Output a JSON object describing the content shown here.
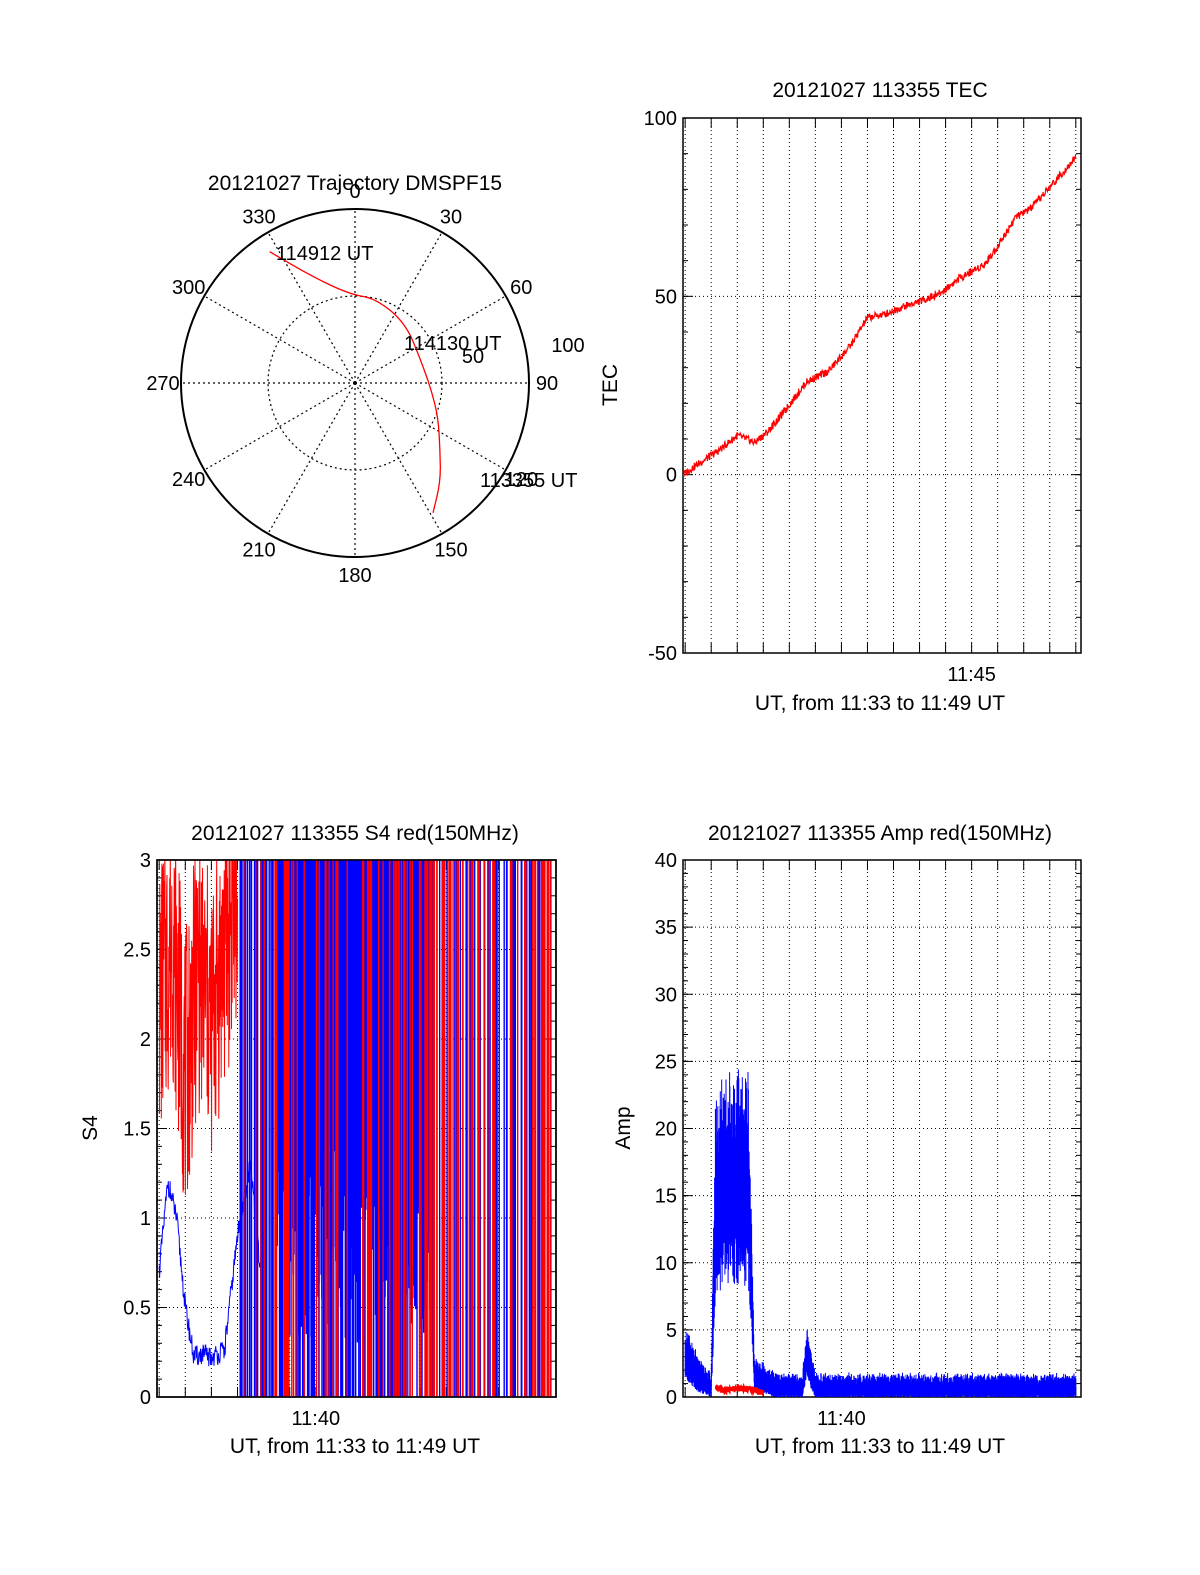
{
  "chart_data": [
    {
      "type": "polar",
      "title": "20121027 Trajectory DMSPF15",
      "angle_ticks": [
        "0",
        "30",
        "60",
        "90",
        "120",
        "150",
        "180",
        "210",
        "240",
        "270",
        "300",
        "330"
      ],
      "radial_ticks": [
        "50",
        "100"
      ],
      "rlim": [
        0,
        100
      ],
      "grid": true,
      "series": [
        {
          "color": "#ff0000",
          "points": [
            {
              "azimuth": 149,
              "r": 87
            },
            {
              "azimuth": 139,
              "r": 75
            },
            {
              "azimuth": 128,
              "r": 62
            },
            {
              "azimuth": 113,
              "r": 52
            },
            {
              "azimuth": 95,
              "r": 44
            },
            {
              "azimuth": 70,
              "r": 40
            },
            {
              "azimuth": 40,
              "r": 45
            },
            {
              "azimuth": 14,
              "r": 50
            },
            {
              "azimuth": -3,
              "r": 51
            },
            {
              "azimuth": -22,
              "r": 66
            },
            {
              "azimuth": -33,
              "r": 90
            }
          ]
        }
      ],
      "annotations": [
        "113355 UT",
        "114130 UT",
        "114912 UT"
      ]
    },
    {
      "type": "line",
      "title": "20121027 113355 TEC",
      "ylabel": "TEC",
      "xlabel": "UT, from 11:33 to 11:49 UT",
      "xlim": [
        "11:33:55",
        "11:49:12"
      ],
      "ylim": [
        -50,
        100
      ],
      "y_ticks": [
        "100",
        "50",
        "0",
        "-50"
      ],
      "x_tick_labels": [
        "11:45"
      ],
      "grid": true,
      "series": [
        {
          "color": "#ff0000",
          "x": [
            "11:33:55",
            "11:34:30",
            "11:35:20",
            "11:36:00",
            "11:36:40",
            "11:37:10",
            "11:37:50",
            "11:38:40",
            "11:39:30",
            "11:40:20",
            "11:41:00",
            "11:41:40",
            "11:42:20",
            "11:43:10",
            "11:43:50",
            "11:44:30",
            "11:45:00",
            "11:45:30",
            "11:46:00",
            "11:46:40",
            "11:47:20",
            "11:48:10",
            "11:49:00"
          ],
          "y": [
            0,
            3,
            7,
            11,
            9,
            12,
            18,
            26,
            29,
            36,
            44,
            45,
            47,
            49,
            51,
            55,
            57,
            59,
            64,
            72,
            75,
            82,
            89
          ]
        }
      ]
    },
    {
      "type": "line",
      "title": "20121027 113355 S4 red(150MHz)",
      "ylabel": "S4",
      "xlabel": "UT, from 11:33 to 11:49 UT",
      "xlim": [
        "11:33:55",
        "11:49:12"
      ],
      "ylim": [
        0,
        3
      ],
      "y_ticks": [
        "3",
        "2.5",
        "2",
        "1.5",
        "1",
        "0.5",
        "0"
      ],
      "x_tick_labels": [
        "11:40"
      ],
      "grid": true,
      "series": [
        {
          "color": "#0000ff",
          "x": [
            "11:34:00",
            "11:34:20",
            "11:34:40",
            "11:35:00",
            "11:35:20",
            "11:35:40",
            "11:36:00",
            "11:36:30",
            "11:37:00",
            "11:37:30",
            "11:38:00"
          ],
          "y": [
            0.7,
            1.2,
            1.0,
            0.5,
            0.22,
            0.24,
            0.22,
            0.26,
            0.9,
            1.3,
            0.5
          ]
        },
        {
          "color": "#ff0000",
          "x": [
            "11:34:00",
            "11:34:30",
            "11:35:00",
            "11:35:30",
            "11:36:00",
            "11:36:30",
            "11:37:00"
          ],
          "y": [
            2.2,
            2.6,
            1.8,
            2.4,
            2.1,
            2.5,
            2.9
          ]
        }
      ]
    },
    {
      "type": "line",
      "title": "20121027 113355 Amp red(150MHz)",
      "ylabel": "Amp",
      "xlabel": "UT, from 11:33 to 11:49 UT",
      "xlim": [
        "11:33:55",
        "11:49:12"
      ],
      "ylim": [
        0,
        40
      ],
      "y_ticks": [
        "40",
        "35",
        "30",
        "25",
        "20",
        "15",
        "10",
        "5",
        "0"
      ],
      "x_tick_labels": [
        "11:40"
      ],
      "grid": true,
      "series": [
        {
          "color": "#0000ff",
          "x": [
            "11:34:00",
            "11:34:30",
            "11:35:00",
            "11:35:10",
            "11:35:40",
            "11:36:10",
            "11:36:25",
            "11:36:40",
            "11:37:30",
            "11:38:30",
            "11:38:40",
            "11:39:00",
            "11:41:00",
            "11:43:00",
            "11:45:00",
            "11:47:00",
            "11:49:00"
          ],
          "y": [
            4,
            2,
            1,
            18,
            20,
            19,
            20,
            2,
            1,
            1,
            4,
            1,
            1,
            1,
            1,
            1,
            1
          ]
        },
        {
          "color": "#ff0000",
          "x": [
            "11:35:10",
            "11:35:40",
            "11:36:10",
            "11:36:40",
            "11:37:00"
          ],
          "y": [
            0.6,
            0.5,
            0.7,
            0.5,
            0.3
          ]
        }
      ]
    }
  ]
}
